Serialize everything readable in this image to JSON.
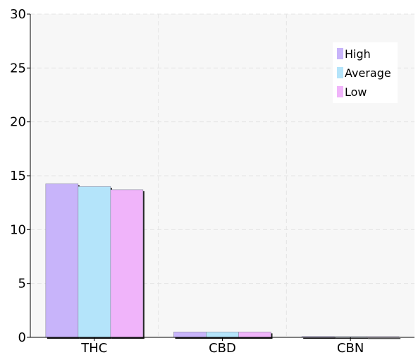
{
  "chart_data": {
    "type": "bar",
    "title": "",
    "xlabel": "",
    "ylabel": "",
    "categories": [
      "THC",
      "CBD",
      "CBN"
    ],
    "ylim": [
      0,
      30
    ],
    "yticks": [
      "0",
      "5",
      "10",
      "15",
      "20",
      "25",
      "30"
    ],
    "grid": true,
    "legend_position": "top-right",
    "series": [
      {
        "name": "High",
        "color": "#c8b4fa",
        "values": [
          14.25,
          0.5,
          0.08
        ]
      },
      {
        "name": "Average",
        "color": "#b4e4fa",
        "values": [
          14.0,
          0.5,
          0.06
        ]
      },
      {
        "name": "Low",
        "color": "#f0b4fa",
        "values": [
          13.7,
          0.5,
          0.05
        ]
      }
    ]
  }
}
